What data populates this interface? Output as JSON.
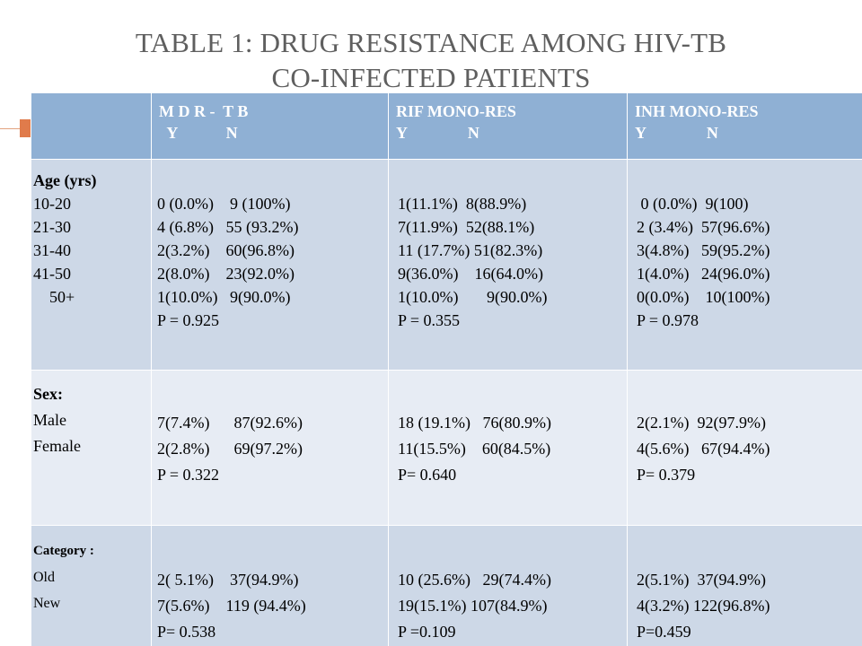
{
  "title": {
    "line1": "TABLE 1: DRUG RESISTANCE AMONG HIV-TB",
    "line2": "CO-INFECTED PATIENTS"
  },
  "table": {
    "headers": [
      "",
      "M D R -  T B\n  Y            N",
      "RIF MONO-RES\nY               N",
      "INH MONO-RES\nY               N"
    ],
    "rows": [
      {
        "label_title": "Age (yrs)",
        "labels": [
          "10-20",
          "21-30",
          "31-40",
          "41-50",
          "    50+"
        ],
        "mdr": [
          "0 (0.0%)    9 (100%)",
          "4 (6.8%)   55 (93.2%)",
          "2(3.2%)    60(96.8%)",
          "2(8.0%)    23(92.0%)",
          "1(10.0%)   9(90.0%)",
          "P = 0.925"
        ],
        "rif": [
          "1(11.1%)  8(88.9%)",
          "7(11.9%)  52(88.1%)",
          "11 (17.7%) 51(82.3%)",
          "9(36.0%)    16(64.0%)",
          "1(10.0%)       9(90.0%)",
          "P = 0.355"
        ],
        "inh": [
          " 0 (0.0%)  9(100)",
          "2 (3.4%)  57(96.6%)",
          "3(4.8%)   59(95.2%)",
          "1(4.0%)   24(96.0%)",
          "0(0.0%)    10(100%)",
          "P = 0.978"
        ]
      },
      {
        "label_title": "Sex:",
        "labels": [
          "Male",
          "Female"
        ],
        "mdr": [
          "7(7.4%)      87(92.6%)",
          "2(2.8%)      69(97.2%)",
          "P = 0.322"
        ],
        "rif": [
          "18 (19.1%)   76(80.9%)",
          "11(15.5%)    60(84.5%)",
          "P= 0.640"
        ],
        "inh": [
          "2(2.1%)  92(97.9%)",
          "4(5.6%)   67(94.4%)",
          "P= 0.379"
        ]
      },
      {
        "label_title": "Category :",
        "labels": [
          "Old",
          "New"
        ],
        "mdr": [
          "2( 5.1%)    37(94.9%)",
          "7(5.6%)    119 (94.4%)",
          "P= 0.538"
        ],
        "rif": [
          "10 (25.6%)   29(74.4%)",
          "19(15.1%) 107(84.9%)",
          "P =0.109"
        ],
        "inh": [
          "2(5.1%)  37(94.9%)",
          "4(3.2%) 122(96.8%)",
          "P=0.459"
        ]
      }
    ]
  }
}
